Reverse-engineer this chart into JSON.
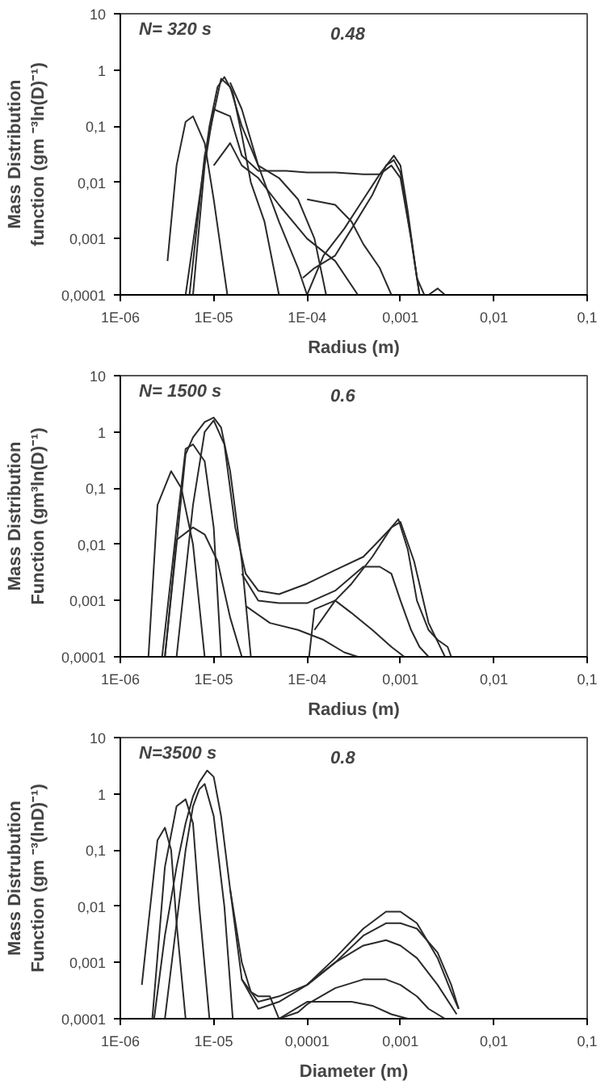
{
  "chart_data": [
    {
      "type": "line",
      "xlabel": "Radius (m)",
      "ylabel": "Mass Distribution function (gm ⁻³ln(D)⁻¹)",
      "annotations": [
        "N= 320 s",
        "0.48"
      ],
      "log": "xy",
      "grid": false,
      "xlim": [
        1e-06,
        0.1
      ],
      "ylim": [
        0.0001,
        10
      ],
      "xticks": [
        {
          "value": 1e-06,
          "label": "1E-06"
        },
        {
          "value": 1e-05,
          "label": "1E-05"
        },
        {
          "value": 0.0001,
          "label": "1E-04"
        },
        {
          "value": 0.001,
          "label": "0,001"
        },
        {
          "value": 0.01,
          "label": "0,01"
        },
        {
          "value": 0.1,
          "label": "0,1"
        }
      ],
      "yticks": [
        {
          "value": 0.0001,
          "label": "0,0001"
        },
        {
          "value": 0.001,
          "label": "0,001"
        },
        {
          "value": 0.01,
          "label": "0,01"
        },
        {
          "value": 0.1,
          "label": "0,1"
        },
        {
          "value": 1,
          "label": "1"
        },
        {
          "value": 10,
          "label": "10"
        }
      ],
      "series": [
        {
          "color": "#2a2a2a",
          "x": [
            3.2e-06,
            4e-06,
            5e-06,
            6e-06,
            8e-06,
            1e-05,
            1.4e-05
          ],
          "values": [
            0.0004,
            0.02,
            0.12,
            0.15,
            0.05,
            0.005,
            0.0001
          ]
        },
        {
          "color": "#2a2a2a",
          "x": [
            5e-06,
            7e-06,
            9e-06,
            1.1e-05,
            1.3e-05,
            1.6e-05,
            2e-05,
            2.5e-05,
            3.5e-05,
            5e-05
          ],
          "values": [
            0.0001,
            0.005,
            0.1,
            0.5,
            0.75,
            0.4,
            0.07,
            0.01,
            0.002,
            0.0001
          ]
        },
        {
          "color": "#2a2a2a",
          "x": [
            5.5e-06,
            8e-06,
            1.2e-05,
            1.5e-05,
            2e-05,
            3e-05,
            5e-05,
            8e-05,
            0.00012,
            0.00016
          ],
          "values": [
            0.0001,
            0.03,
            0.7,
            0.5,
            0.1,
            0.02,
            0.012,
            0.005,
            0.001,
            0.0001
          ]
        },
        {
          "color": "#2a2a2a",
          "x": [
            6e-06,
            8e-06,
            1e-05,
            1.5e-05,
            2e-05,
            3e-05,
            6e-05,
            0.0001,
            0.0002,
            0.0004,
            0.0006,
            0.0008,
            0.001,
            0.0013,
            0.0016
          ],
          "values": [
            0.0001,
            0.02,
            0.2,
            0.15,
            0.03,
            0.016,
            0.016,
            0.015,
            0.015,
            0.014,
            0.014,
            0.02,
            0.012,
            0.001,
            0.0001
          ]
        },
        {
          "color": "#2a2a2a",
          "x": [
            0.0001,
            0.00015,
            0.00025,
            0.0004,
            0.0006,
            0.00085,
            0.001,
            0.0012,
            0.0015,
            0.0018
          ],
          "values": [
            0.0001,
            0.0005,
            0.0015,
            0.005,
            0.014,
            0.03,
            0.02,
            0.003,
            0.0002,
            0.0001
          ]
        },
        {
          "color": "#2a2a2a",
          "x": [
            9e-05,
            0.00012,
            0.0002,
            0.0003,
            0.0005,
            0.0007,
            0.00085,
            0.001,
            0.0013,
            0.0016
          ],
          "values": [
            0.0002,
            0.0003,
            0.0005,
            0.0015,
            0.006,
            0.02,
            0.025,
            0.015,
            0.001,
            0.0001
          ]
        },
        {
          "color": "#2a2a2a",
          "x": [
            1e-05,
            1.5e-05,
            2e-05,
            3e-05,
            5e-05,
            0.0001,
            0.0002,
            0.00035
          ],
          "values": [
            0.02,
            0.05,
            0.02,
            0.012,
            0.004,
            0.001,
            0.0004,
            0.0001
          ]
        },
        {
          "color": "#2a2a2a",
          "x": [
            1.5e-05,
            2e-05,
            3e-05,
            5e-05,
            8e-05,
            0.0001
          ],
          "values": [
            0.6,
            0.2,
            0.02,
            0.002,
            0.0003,
            0.0001
          ]
        },
        {
          "color": "#2a2a2a",
          "x": [
            0.0001,
            0.0002,
            0.0003,
            0.0004,
            0.0006,
            0.0008
          ],
          "values": [
            0.005,
            0.004,
            0.002,
            0.0008,
            0.0003,
            0.0001
          ]
        },
        {
          "color": "#2a2a2a",
          "x": [
            0.002,
            0.0025,
            0.003
          ],
          "values": [
            0.0001,
            0.00013,
            0.0001
          ]
        }
      ]
    },
    {
      "type": "line",
      "xlabel": "Radius (m)",
      "ylabel": "Mass Distribution Function (gm³ln(D)⁻¹)",
      "annotations": [
        "N= 1500 s",
        "0.6"
      ],
      "log": "xy",
      "grid": false,
      "xlim": [
        1e-06,
        0.1
      ],
      "ylim": [
        0.0001,
        10
      ],
      "xticks": [
        {
          "value": 1e-06,
          "label": "1E-06"
        },
        {
          "value": 1e-05,
          "label": "1E-05"
        },
        {
          "value": 0.0001,
          "label": "1E-04"
        },
        {
          "value": 0.001,
          "label": "0,001"
        },
        {
          "value": 0.01,
          "label": "0,01"
        },
        {
          "value": 0.1,
          "label": "0,1"
        }
      ],
      "yticks": [
        {
          "value": 0.0001,
          "label": "0,0001"
        },
        {
          "value": 0.001,
          "label": "0,001"
        },
        {
          "value": 0.01,
          "label": "0,01"
        },
        {
          "value": 0.1,
          "label": "0,1"
        },
        {
          "value": 1,
          "label": "1"
        },
        {
          "value": 10,
          "label": "10"
        }
      ],
      "series": [
        {
          "color": "#2a2a2a",
          "x": [
            2e-06,
            2.5e-06,
            3.5e-06,
            4.5e-06,
            6e-06,
            8e-06
          ],
          "values": [
            0.0001,
            0.05,
            0.2,
            0.1,
            0.01,
            0.0001
          ]
        },
        {
          "color": "#2a2a2a",
          "x": [
            3e-06,
            4e-06,
            5e-06,
            6e-06,
            8e-06,
            1e-05,
            1.2e-05,
            1.5e-05,
            2e-05,
            2.5e-05
          ],
          "values": [
            0.0001,
            0.01,
            0.4,
            0.8,
            1.5,
            1.8,
            1.2,
            0.2,
            0.005,
            0.0001
          ]
        },
        {
          "color": "#2a2a2a",
          "x": [
            2.8e-06,
            4e-06,
            5e-06,
            6e-06,
            8e-06,
            1e-05,
            1.2e-05
          ],
          "values": [
            0.0001,
            0.02,
            0.5,
            0.6,
            0.3,
            0.02,
            0.0001
          ]
        },
        {
          "color": "#2a2a2a",
          "x": [
            3e-06,
            4e-06,
            6e-06,
            8e-06,
            1.1e-05,
            1.5e-05,
            2e-05
          ],
          "values": [
            0.0001,
            0.012,
            0.02,
            0.015,
            0.005,
            0.0005,
            0.0001
          ]
        },
        {
          "color": "#2a2a2a",
          "x": [
            4e-06,
            6e-06,
            8e-06,
            1e-05,
            1.3e-05,
            1.7e-05,
            2.2e-05,
            3e-05,
            5e-05,
            0.0001,
            0.0002,
            0.0004,
            0.0006,
            0.0008,
            0.00095,
            0.0012,
            0.0015,
            0.002,
            0.0025,
            0.0032,
            0.0035
          ],
          "values": [
            0.0001,
            0.05,
            1,
            1.6,
            0.6,
            0.02,
            0.003,
            0.0015,
            0.0013,
            0.002,
            0.0035,
            0.006,
            0.012,
            0.02,
            0.028,
            0.008,
            0.001,
            0.0003,
            0.0002,
            0.00015,
            0.0001
          ]
        },
        {
          "color": "#2a2a2a",
          "x": [
            2e-05,
            3e-05,
            5e-05,
            0.0001,
            0.0002,
            0.0004,
            0.0006,
            0.0008,
            0.001,
            0.0013,
            0.0016,
            0.002
          ],
          "values": [
            0.003,
            0.001,
            0.0009,
            0.0009,
            0.0015,
            0.004,
            0.004,
            0.003,
            0.001,
            0.0003,
            0.00015,
            0.0001
          ]
        },
        {
          "color": "#2a2a2a",
          "x": [
            2.2e-05,
            4e-05,
            8e-05,
            0.00015,
            0.00025,
            0.00035
          ],
          "values": [
            0.0008,
            0.0004,
            0.0003,
            0.0002,
            0.00012,
            0.0001
          ]
        },
        {
          "color": "#2a2a2a",
          "x": [
            0.000105,
            0.00012,
            0.0002,
            0.0003,
            0.0005,
            0.0008,
            0.0011
          ],
          "values": [
            0.0001,
            0.0007,
            0.001,
            0.0006,
            0.0003,
            0.00015,
            0.0001
          ]
        },
        {
          "color": "#2a2a2a",
          "x": [
            0.00012,
            0.0002,
            0.0003,
            0.0005,
            0.0008,
            0.001,
            0.0014,
            0.002,
            0.003
          ],
          "values": [
            0.0003,
            0.001,
            0.002,
            0.006,
            0.02,
            0.025,
            0.005,
            0.0004,
            0.0001
          ]
        }
      ]
    },
    {
      "type": "line",
      "xlabel": "Diameter (m)",
      "ylabel": "Mass Distrubution Function (gm ⁻³(lnD)⁻¹)",
      "annotations": [
        "N=3500 s",
        "0.8"
      ],
      "log": "xy",
      "grid": false,
      "xlim": [
        1e-06,
        0.1
      ],
      "ylim": [
        0.0001,
        10
      ],
      "xticks": [
        {
          "value": 1e-06,
          "label": "1E-06"
        },
        {
          "value": 1e-05,
          "label": "1E-05"
        },
        {
          "value": 0.0001,
          "label": "0,0001"
        },
        {
          "value": 0.001,
          "label": "0,001"
        },
        {
          "value": 0.01,
          "label": "0,01"
        },
        {
          "value": 0.1,
          "label": "0,1"
        }
      ],
      "yticks": [
        {
          "value": 0.0001,
          "label": "0,0001"
        },
        {
          "value": 0.001,
          "label": "0,001"
        },
        {
          "value": 0.01,
          "label": "0,01"
        },
        {
          "value": 0.1,
          "label": "0,1"
        },
        {
          "value": 1,
          "label": "1"
        },
        {
          "value": 10,
          "label": "10"
        }
      ],
      "series": [
        {
          "color": "#2a2a2a",
          "x": [
            1.7e-06,
            2e-06,
            2.5e-06,
            3e-06,
            3.5e-06,
            4e-06,
            5e-06
          ],
          "values": [
            0.0004,
            0.005,
            0.15,
            0.25,
            0.1,
            0.005,
            0.0001
          ]
        },
        {
          "color": "#2a2a2a",
          "x": [
            2.2e-06,
            3e-06,
            4e-06,
            5e-06,
            6e-06,
            7e-06,
            9e-06
          ],
          "values": [
            0.0001,
            0.05,
            0.6,
            0.8,
            0.3,
            0.01,
            0.0001
          ]
        },
        {
          "color": "#2a2a2a",
          "x": [
            2.3e-06,
            3e-06,
            4e-06,
            5e-06,
            6e-06,
            7e-06,
            8.5e-06,
            1e-05,
            1.2e-05,
            1.5e-05,
            2e-05,
            2.5e-05,
            3e-05,
            4e-05,
            5e-05
          ],
          "values": [
            0.0001,
            0.003,
            0.05,
            0.3,
            0.9,
            1.6,
            2.6,
            2,
            0.4,
            0.02,
            0.001,
            0.0003,
            0.00025,
            0.00025,
            0.0001
          ]
        },
        {
          "color": "#2a2a2a",
          "x": [
            3e-06,
            4e-06,
            5e-06,
            6e-06,
            7e-06,
            8e-06,
            1e-05,
            1.3e-05,
            1.6e-05
          ],
          "values": [
            0.0001,
            0.005,
            0.1,
            0.6,
            1.2,
            1.5,
            0.4,
            0.01,
            0.0001
          ]
        },
        {
          "color": "#2a2a2a",
          "x": [
            1.5e-05,
            2e-05,
            3e-05,
            5e-05,
            0.0001,
            0.0002,
            0.0004,
            0.0007,
            0.001,
            0.0015,
            0.0025,
            0.0035,
            0.0042
          ],
          "values": [
            0.02,
            0.0005,
            0.0002,
            0.00025,
            0.0004,
            0.0012,
            0.004,
            0.008,
            0.008,
            0.005,
            0.0012,
            0.0003,
            0.00015
          ]
        },
        {
          "color": "#2a2a2a",
          "x": [
            2e-05,
            3e-05,
            5e-05,
            0.0001,
            0.0002,
            0.0004,
            0.0007,
            0.001,
            0.0015,
            0.0025,
            0.004
          ],
          "values": [
            0.0005,
            0.00015,
            0.0002,
            0.0004,
            0.001,
            0.002,
            0.0025,
            0.002,
            0.0012,
            0.0004,
            0.00012
          ]
        },
        {
          "color": "#2a2a2a",
          "x": [
            3e-05,
            5e-05,
            8e-05,
            0.0001,
            0.0002,
            0.0004,
            0.0007,
            0.001,
            0.0015,
            0.002,
            0.003
          ],
          "values": [
            0.0001,
            0.0001,
            0.00013,
            0.00018,
            0.00035,
            0.0005,
            0.0005,
            0.0004,
            0.00025,
            0.00015,
            0.0001
          ]
        },
        {
          "color": "#2a2a2a",
          "x": [
            5e-05,
            0.0001,
            0.0002,
            0.0003,
            0.0005,
            0.0008,
            0.0012,
            0.0015
          ],
          "values": [
            0.0001,
            0.0002,
            0.0002,
            0.0002,
            0.00017,
            0.00012,
            0.0001,
            0.0001
          ]
        },
        {
          "color": "#2a2a2a",
          "x": [
            0.0001,
            0.0002,
            0.0004,
            0.0007,
            0.001,
            0.0015,
            0.0025,
            0.0035,
            0.0042
          ],
          "values": [
            0.0004,
            0.001,
            0.003,
            0.005,
            0.005,
            0.004,
            0.0015,
            0.0004,
            0.00015
          ]
        }
      ]
    }
  ]
}
